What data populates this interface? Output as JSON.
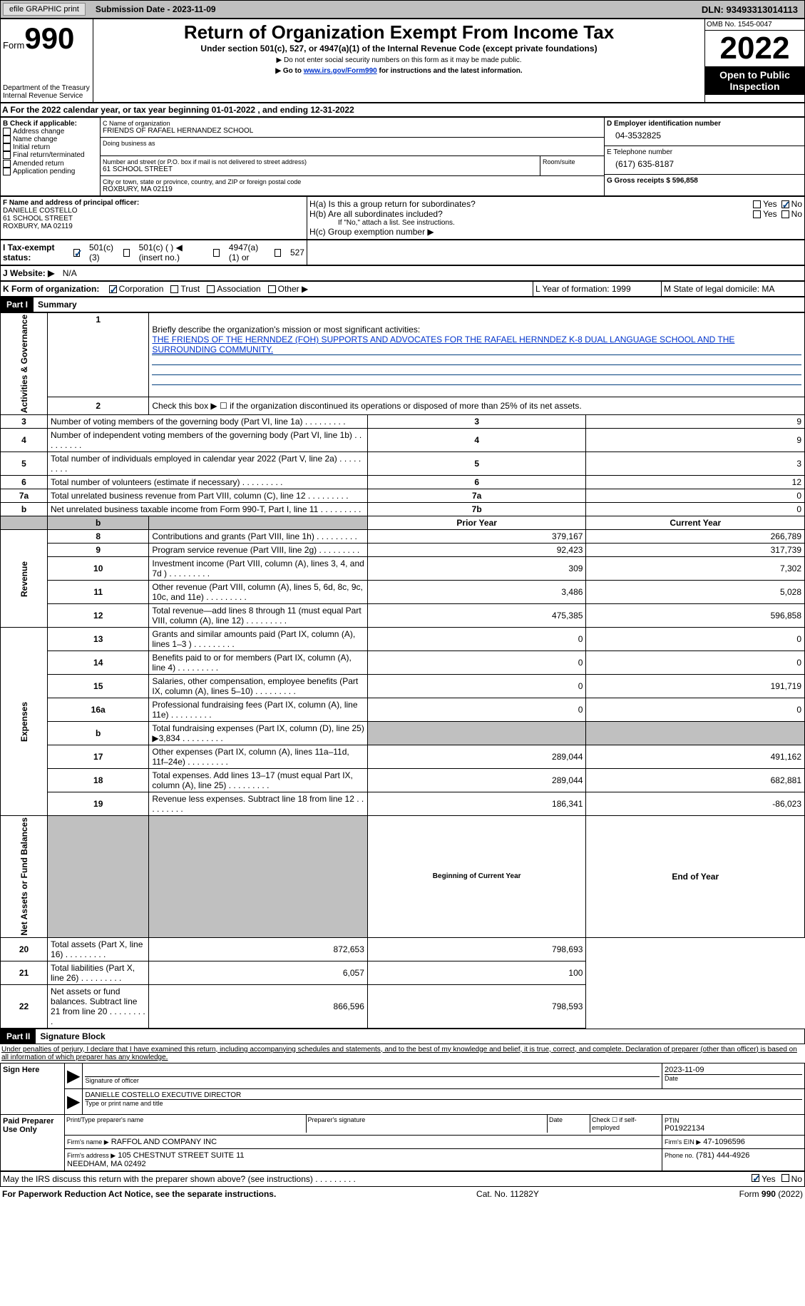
{
  "header": {
    "efile_btn": "efile GRAPHIC print",
    "submission_label": "Submission Date - 2023-11-09",
    "dln": "DLN: 93493313014113"
  },
  "title_block": {
    "form_word": "Form",
    "form_num": "990",
    "main": "Return of Organization Exempt From Income Tax",
    "sub1": "Under section 501(c), 527, or 4947(a)(1) of the Internal Revenue Code (except private foundations)",
    "sub2": "▶ Do not enter social security numbers on this form as it may be made public.",
    "sub3_pre": "▶ Go to ",
    "sub3_link": "www.irs.gov/Form990",
    "sub3_post": " for instructions and the latest information.",
    "dept": "Department of the Treasury\nInternal Revenue Service",
    "omb": "OMB No. 1545-0047",
    "year": "2022",
    "open": "Open to Public Inspection"
  },
  "section_a": {
    "line_a": "A For the 2022 calendar year, or tax year beginning 01-01-2022    , and ending 12-31-2022",
    "check_label": "B Check if applicable:",
    "checks": [
      "Address change",
      "Name change",
      "Initial return",
      "Final return/terminated",
      "Amended return",
      "Application pending"
    ],
    "c_name_label": "C Name of organization",
    "c_name": "FRIENDS OF RAFAEL HERNANDEZ SCHOOL",
    "dba_label": "Doing business as",
    "addr_label": "Number and street (or P.O. box if mail is not delivered to street address)",
    "addr": "61 SCHOOL STREET",
    "room_label": "Room/suite",
    "city_label": "City or town, state or province, country, and ZIP or foreign postal code",
    "city": "ROXBURY, MA  02119",
    "d_label": "D Employer identification number",
    "d_val": "04-3532825",
    "e_label": "E Telephone number",
    "e_val": "(617) 635-8187",
    "g_label": "G Gross receipts $ 596,858"
  },
  "section_f": {
    "f_label": "F Name and address of principal officer:",
    "f_name": "DANIELLE COSTELLO",
    "f_addr1": "61 SCHOOL STREET",
    "f_addr2": "ROXBURY, MA  02119",
    "h_a": "H(a)  Is this a group return for subordinates?",
    "h_b": "H(b)  Are all subordinates included?",
    "h_b_note": "If \"No,\" attach a list. See instructions.",
    "h_c": "H(c)  Group exemption number ▶",
    "yes": "Yes",
    "no": "No"
  },
  "section_i": {
    "label": "I  Tax-exempt status:",
    "opt1": "501(c)(3)",
    "opt2": "501(c) (  ) ◀ (insert no.)",
    "opt3": "4947(a)(1) or",
    "opt4": "527"
  },
  "section_j": {
    "label": "J  Website: ▶",
    "val": "N/A"
  },
  "section_k": {
    "label": "K Form of organization:",
    "opts": [
      "Corporation",
      "Trust",
      "Association",
      "Other ▶"
    ],
    "l": "L Year of formation: 1999",
    "m": "M State of legal domicile: MA"
  },
  "part1": {
    "header": "Part I",
    "title": "Summary",
    "side_ag": "Activities & Governance",
    "side_rev": "Revenue",
    "side_exp": "Expenses",
    "side_na": "Net Assets or Fund Balances",
    "line1_label": "Briefly describe the organization's mission or most significant activities:",
    "line1_text": "THE FRIENDS OF THE HERNNDEZ (FOH) SUPPORTS AND ADVOCATES FOR THE RAFAEL HERNNDEZ K-8 DUAL LANGUAGE SCHOOL AND THE SURROUNDING COMMUNITY.",
    "line2": "Check this box ▶ ☐ if the organization discontinued its operations or disposed of more than 25% of its net assets.",
    "rows_ag": [
      {
        "n": "3",
        "d": "Number of voting members of the governing body (Part VI, line 1a)",
        "box": "3",
        "v": "9"
      },
      {
        "n": "4",
        "d": "Number of independent voting members of the governing body (Part VI, line 1b)",
        "box": "4",
        "v": "9"
      },
      {
        "n": "5",
        "d": "Total number of individuals employed in calendar year 2022 (Part V, line 2a)",
        "box": "5",
        "v": "3"
      },
      {
        "n": "6",
        "d": "Total number of volunteers (estimate if necessary)",
        "box": "6",
        "v": "12"
      },
      {
        "n": "7a",
        "d": "Total unrelated business revenue from Part VIII, column (C), line 12",
        "box": "7a",
        "v": "0"
      },
      {
        "n": "b",
        "d": "Net unrelated business taxable income from Form 990-T, Part I, line 11",
        "box": "7b",
        "v": "0"
      }
    ],
    "col_prior": "Prior Year",
    "col_current": "Current Year",
    "rows_rev": [
      {
        "n": "8",
        "d": "Contributions and grants (Part VIII, line 1h)",
        "p": "379,167",
        "c": "266,789"
      },
      {
        "n": "9",
        "d": "Program service revenue (Part VIII, line 2g)",
        "p": "92,423",
        "c": "317,739"
      },
      {
        "n": "10",
        "d": "Investment income (Part VIII, column (A), lines 3, 4, and 7d )",
        "p": "309",
        "c": "7,302"
      },
      {
        "n": "11",
        "d": "Other revenue (Part VIII, column (A), lines 5, 6d, 8c, 9c, 10c, and 11e)",
        "p": "3,486",
        "c": "5,028"
      },
      {
        "n": "12",
        "d": "Total revenue—add lines 8 through 11 (must equal Part VIII, column (A), line 12)",
        "p": "475,385",
        "c": "596,858"
      }
    ],
    "rows_exp": [
      {
        "n": "13",
        "d": "Grants and similar amounts paid (Part IX, column (A), lines 1–3 )",
        "p": "0",
        "c": "0"
      },
      {
        "n": "14",
        "d": "Benefits paid to or for members (Part IX, column (A), line 4)",
        "p": "0",
        "c": "0"
      },
      {
        "n": "15",
        "d": "Salaries, other compensation, employee benefits (Part IX, column (A), lines 5–10)",
        "p": "0",
        "c": "191,719"
      },
      {
        "n": "16a",
        "d": "Professional fundraising fees (Part IX, column (A), line 11e)",
        "p": "0",
        "c": "0"
      },
      {
        "n": "b",
        "d": "Total fundraising expenses (Part IX, column (D), line 25) ▶3,834",
        "p": "",
        "c": "",
        "gray": true
      },
      {
        "n": "17",
        "d": "Other expenses (Part IX, column (A), lines 11a–11d, 11f–24e)",
        "p": "289,044",
        "c": "491,162"
      },
      {
        "n": "18",
        "d": "Total expenses. Add lines 13–17 (must equal Part IX, column (A), line 25)",
        "p": "289,044",
        "c": "682,881"
      },
      {
        "n": "19",
        "d": "Revenue less expenses. Subtract line 18 from line 12",
        "p": "186,341",
        "c": "-86,023"
      }
    ],
    "col_bcy": "Beginning of Current Year",
    "col_eoy": "End of Year",
    "rows_na": [
      {
        "n": "20",
        "d": "Total assets (Part X, line 16)",
        "p": "872,653",
        "c": "798,693"
      },
      {
        "n": "21",
        "d": "Total liabilities (Part X, line 26)",
        "p": "6,057",
        "c": "100"
      },
      {
        "n": "22",
        "d": "Net assets or fund balances. Subtract line 21 from line 20",
        "p": "866,596",
        "c": "798,593"
      }
    ]
  },
  "part2": {
    "header": "Part II",
    "title": "Signature Block",
    "declaration": "Under penalties of perjury, I declare that I have examined this return, including accompanying schedules and statements, and to the best of my knowledge and belief, it is true, correct, and complete. Declaration of preparer (other than officer) is based on all information of which preparer has any knowledge.",
    "sign_here": "Sign Here",
    "sig_officer": "Signature of officer",
    "sig_date": "2023-11-09",
    "sig_date_label": "Date",
    "officer_name": "DANIELLE COSTELLO  EXECUTIVE DIRECTOR",
    "officer_label": "Type or print name and title",
    "paid": "Paid Preparer Use Only",
    "prep_name_label": "Print/Type preparer's name",
    "prep_sig_label": "Preparer's signature",
    "date_label": "Date",
    "check_se": "Check ☐ if self-employed",
    "ptin_label": "PTIN",
    "ptin": "P01922134",
    "firm_name_label": "Firm's name    ▶",
    "firm_name": "RAFFOL AND COMPANY INC",
    "firm_ein_label": "Firm's EIN ▶",
    "firm_ein": "47-1096596",
    "firm_addr_label": "Firm's address ▶",
    "firm_addr": "105 CHESTNUT STREET SUITE 11\nNEEDHAM, MA  02492",
    "phone_label": "Phone no.",
    "phone": "(781) 444-4926",
    "discuss": "May the IRS discuss this return with the preparer shown above? (see instructions)"
  },
  "footer": {
    "left": "For Paperwork Reduction Act Notice, see the separate instructions.",
    "mid": "Cat. No. 11282Y",
    "right": "Form 990 (2022)"
  }
}
